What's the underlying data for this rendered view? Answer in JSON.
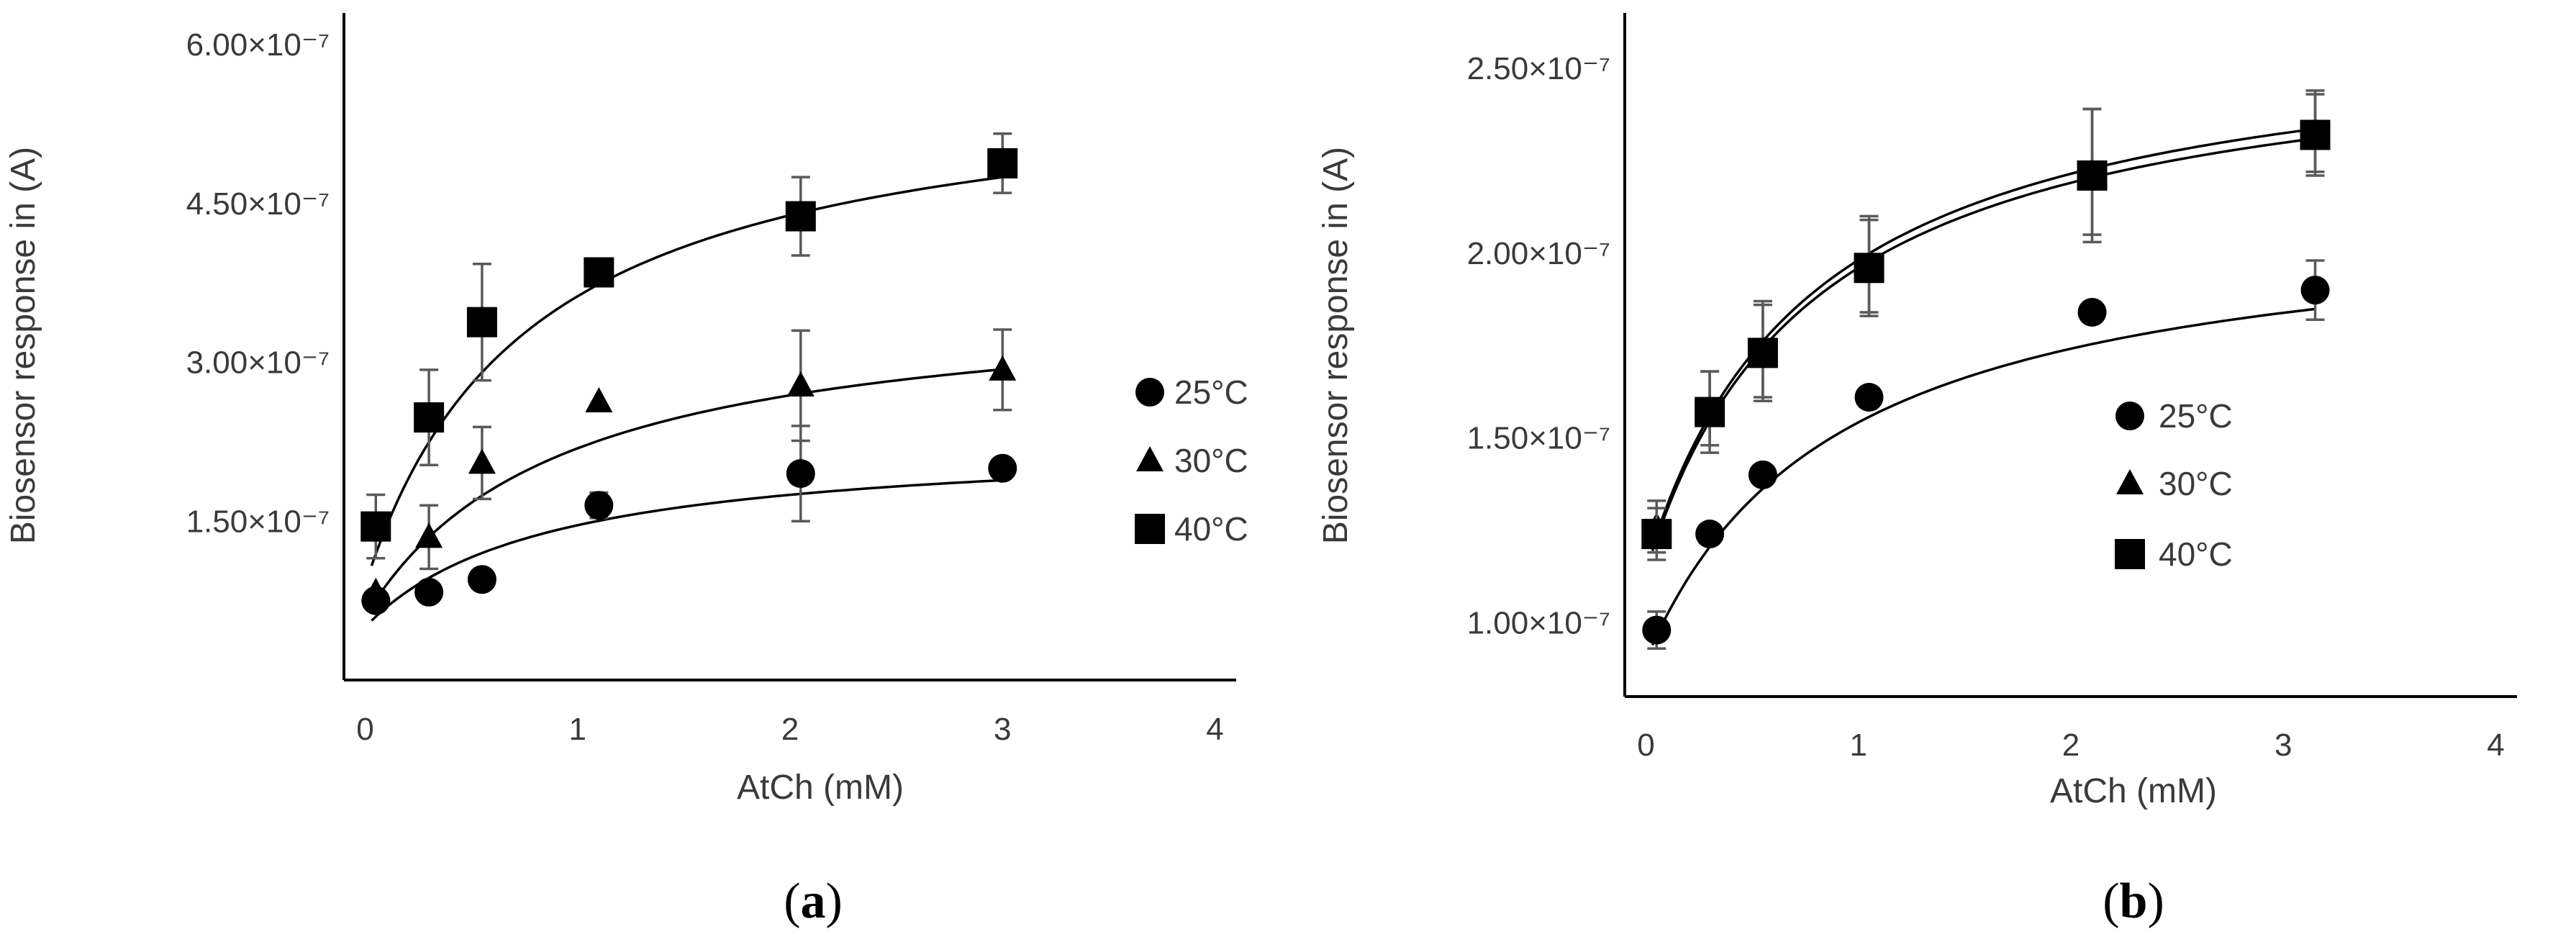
{
  "chart_data": [
    {
      "type": "scatter",
      "panel": "(a)",
      "panel_letter": "a",
      "xlabel": "AtCh (mM)",
      "ylabel": "Biosensor response in (A)",
      "xlim": [
        -0.1,
        4.1
      ],
      "ylim": [
        0,
        6.3e-07
      ],
      "x_ticks": [
        0,
        1,
        2,
        3,
        4
      ],
      "x_tick_labels": [
        "0",
        "1",
        "2",
        "3",
        "4"
      ],
      "y_ticks": [
        1.5e-07,
        3e-07,
        4.5e-07,
        6e-07
      ],
      "y_tick_labels": [
        "1.50×10⁻⁷",
        "3.00×10⁻⁷",
        "4.50×10⁻⁷",
        "6.00×10⁻⁷"
      ],
      "legend_position": "right",
      "series": [
        {
          "name": "25°C",
          "marker": "circle",
          "x": [
            0.05,
            0.3,
            0.55,
            1.1,
            2.05,
            3.0
          ],
          "y": [
            7.5e-08,
            8.3e-08,
            9.5e-08,
            1.65e-07,
            1.95e-07,
            2e-07
          ],
          "err": [
            0,
            0,
            0,
            1.2e-08,
            4.5e-08,
            0
          ],
          "fit": {
            "base": 5e-08,
            "vmax": 1.78e-07,
            "km": 0.85
          }
        },
        {
          "name": "30°C",
          "marker": "triangle",
          "x": [
            0.05,
            0.3,
            0.55,
            1.1,
            2.05,
            3.0
          ],
          "y": [
            8.3e-08,
            1.35e-07,
            2.05e-07,
            2.63e-07,
            2.78e-07,
            2.93e-07
          ],
          "err": [
            0,
            3e-08,
            3.4e-08,
            0,
            5.2e-08,
            3.8e-08
          ],
          "fit": {
            "base": 6e-08,
            "vmax": 3.05e-07,
            "km": 0.92
          }
        },
        {
          "name": "40°C",
          "marker": "square",
          "x": [
            0.05,
            0.3,
            0.55,
            1.1,
            2.05,
            3.0
          ],
          "y": [
            1.45e-07,
            2.48e-07,
            3.38e-07,
            3.85e-07,
            4.38e-07,
            4.88e-07
          ],
          "err": [
            3e-08,
            4.5e-08,
            5.5e-08,
            0,
            3.7e-08,
            2.8e-08
          ],
          "fit": {
            "base": 9e-08,
            "vmax": 4.85e-07,
            "km": 0.78
          }
        }
      ]
    },
    {
      "type": "scatter",
      "panel": "(b)",
      "panel_letter": "b",
      "xlabel": "AtCh (mM)",
      "ylabel": "Biosensor response in (A)",
      "xlim": [
        -0.1,
        4.1
      ],
      "ylim": [
        8e-08,
        2.65e-07
      ],
      "x_ticks": [
        0,
        1,
        2,
        3,
        4
      ],
      "x_tick_labels": [
        "0",
        "1",
        "2",
        "3",
        "4"
      ],
      "y_ticks": [
        1e-07,
        1.5e-07,
        2e-07,
        2.5e-07
      ],
      "y_tick_labels": [
        "1.00×10⁻⁷",
        "1.50×10⁻⁷",
        "2.00×10⁻⁷",
        "2.50×10⁻⁷"
      ],
      "legend_position": "right",
      "series": [
        {
          "name": "25°C",
          "marker": "circle",
          "x": [
            0.05,
            0.3,
            0.55,
            1.05,
            2.1,
            3.15
          ],
          "y": [
            9.8e-08,
            1.24e-07,
            1.4e-07,
            1.61e-07,
            1.84e-07,
            1.9e-07
          ],
          "err": [
            5e-09,
            0,
            0,
            0,
            0,
            8e-09
          ],
          "fit": {
            "base": 9e-08,
            "vmax": 1.22e-07,
            "km": 0.9
          }
        },
        {
          "name": "30°C",
          "marker": "triangle",
          "x": [
            0.05,
            0.3,
            0.55,
            1.05,
            2.1,
            3.15
          ],
          "y": [
            1.26e-07,
            1.58e-07,
            1.74e-07,
            1.97e-07,
            2.22e-07,
            2.33e-07
          ],
          "err": [
            7e-09,
            1e-08,
            1.3e-08,
            1.3e-08,
            1.7e-08,
            1.1e-08
          ],
          "fit": {
            "base": 1.15e-07,
            "vmax": 1.48e-07,
            "km": 0.78
          }
        },
        {
          "name": "40°C",
          "marker": "square",
          "x": [
            0.05,
            0.3,
            0.55,
            1.05,
            2.1,
            3.15
          ],
          "y": [
            1.24e-07,
            1.57e-07,
            1.73e-07,
            1.96e-07,
            2.21e-07,
            2.32e-07
          ],
          "err": [
            7e-09,
            1.1e-08,
            1.3e-08,
            1.3e-08,
            1.8e-08,
            1.1e-08
          ],
          "fit": {
            "base": 1.14e-07,
            "vmax": 1.46e-07,
            "km": 0.78
          }
        }
      ]
    }
  ]
}
